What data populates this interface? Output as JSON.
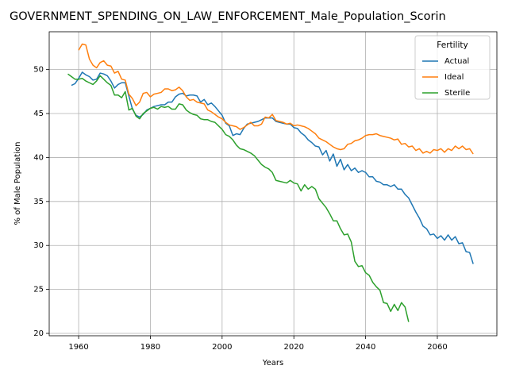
{
  "chart_data": {
    "type": "line",
    "title": "GOVERNMENT_SPENDING_ON_LAW_ENFORCEMENT_Male_Population_Scorin",
    "xlabel": "Years",
    "ylabel": "% of Male Population",
    "x": [
      1957,
      1958,
      1959,
      1960,
      1961,
      1962,
      1963,
      1964,
      1965,
      1966,
      1967,
      1968,
      1969,
      1970,
      1971,
      1972,
      1973,
      1974,
      1975,
      1976,
      1977,
      1978,
      1979,
      1980,
      1981,
      1982,
      1983,
      1984,
      1985,
      1986,
      1987,
      1988,
      1989,
      1990,
      1991,
      1992,
      1993,
      1994,
      1995,
      1996,
      1997,
      1998,
      1999,
      2000,
      2001,
      2002,
      2003,
      2004,
      2005,
      2006,
      2007,
      2008,
      2009,
      2010,
      2011,
      2012,
      2013,
      2014,
      2015,
      2016,
      2017,
      2018,
      2019,
      2020,
      2021,
      2022,
      2023,
      2024,
      2025,
      2026,
      2027,
      2028,
      2029,
      2030,
      2031,
      2032,
      2033,
      2034,
      2035,
      2036,
      2037,
      2038,
      2039,
      2040,
      2041,
      2042,
      2043,
      2044,
      2045,
      2046,
      2047,
      2048,
      2049,
      2050,
      2051,
      2052,
      2053,
      2054,
      2055,
      2056,
      2057,
      2058,
      2059,
      2060,
      2061,
      2062,
      2063,
      2064,
      2065,
      2066,
      2067,
      2068,
      2069,
      2070
    ],
    "series": [
      {
        "name": "Actual",
        "color": "#1f77b4",
        "values": [
          null,
          48.2,
          48.4,
          49.0,
          49.7,
          49.4,
          49.2,
          48.8,
          48.9,
          49.6,
          49.5,
          49.3,
          48.7,
          47.9,
          48.3,
          48.5,
          48.5,
          47.0,
          45.5,
          44.8,
          44.6,
          44.9,
          45.4,
          45.6,
          45.8,
          45.9,
          46.0,
          46.0,
          46.3,
          46.3,
          46.9,
          47.2,
          47.3,
          47.0,
          47.1,
          47.1,
          47.0,
          46.3,
          46.6,
          46.0,
          46.2,
          45.8,
          45.3,
          44.8,
          43.9,
          43.6,
          42.5,
          42.7,
          42.6,
          43.3,
          43.8,
          43.9,
          44.0,
          44.1,
          44.3,
          44.5,
          44.5,
          44.5,
          44.1,
          44.0,
          43.9,
          43.8,
          43.8,
          43.4,
          43.3,
          42.8,
          42.5,
          42.0,
          41.7,
          41.3,
          41.2,
          40.3,
          40.8,
          39.6,
          40.4,
          39.0,
          39.8,
          38.6,
          39.2,
          38.5,
          38.8,
          38.3,
          38.5,
          38.3,
          37.8,
          37.8,
          37.3,
          37.2,
          36.9,
          36.9,
          36.7,
          36.9,
          36.4,
          36.4,
          35.8,
          35.4,
          34.6,
          33.8,
          33.1,
          32.2,
          31.9,
          31.2,
          31.3,
          30.8,
          31.1,
          30.6,
          31.2,
          30.6,
          31.0,
          30.2,
          30.3,
          29.3,
          29.2,
          27.9
        ]
      },
      {
        "name": "Ideal",
        "color": "#ff7f0e",
        "values": [
          null,
          null,
          null,
          52.2,
          52.9,
          52.8,
          51.2,
          50.5,
          50.2,
          50.8,
          51.0,
          50.5,
          50.4,
          49.6,
          49.8,
          48.9,
          48.8,
          47.2,
          46.7,
          45.9,
          46.3,
          47.3,
          47.4,
          46.9,
          47.2,
          47.3,
          47.4,
          47.8,
          47.8,
          47.6,
          47.7,
          48.0,
          47.6,
          46.9,
          46.5,
          46.6,
          46.3,
          46.2,
          46.1,
          45.4,
          45.2,
          44.9,
          44.6,
          44.4,
          44.0,
          43.7,
          43.6,
          43.5,
          43.2,
          43.4,
          43.7,
          44.0,
          43.6,
          43.6,
          43.8,
          44.6,
          44.5,
          44.9,
          44.2,
          44.1,
          44.0,
          43.8,
          43.9,
          43.6,
          43.7,
          43.6,
          43.5,
          43.3,
          43.0,
          42.7,
          42.2,
          42.0,
          41.8,
          41.5,
          41.2,
          41.0,
          40.9,
          41.0,
          41.5,
          41.6,
          41.9,
          42.0,
          42.2,
          42.5,
          42.6,
          42.6,
          42.7,
          42.5,
          42.4,
          42.3,
          42.2,
          42.0,
          42.1,
          41.5,
          41.6,
          41.2,
          41.3,
          40.8,
          41.0,
          40.5,
          40.7,
          40.5,
          40.9,
          40.8,
          41.0,
          40.6,
          41.0,
          40.8,
          41.3,
          41.0,
          41.3,
          40.9,
          41.0,
          40.4
        ]
      },
      {
        "name": "Sterile",
        "color": "#2ca02c",
        "values": [
          49.5,
          49.2,
          48.9,
          48.9,
          49.0,
          48.7,
          48.5,
          48.3,
          48.7,
          49.3,
          48.9,
          48.5,
          48.2,
          47.1,
          47.1,
          46.8,
          47.5,
          45.4,
          45.6,
          44.7,
          44.4,
          45.0,
          45.3,
          45.6,
          45.7,
          45.5,
          45.8,
          45.7,
          45.8,
          45.5,
          45.5,
          46.1,
          46.0,
          45.4,
          45.1,
          44.9,
          44.8,
          44.4,
          44.3,
          44.3,
          44.1,
          44.0,
          43.6,
          43.2,
          42.6,
          42.4,
          42.0,
          41.4,
          41.0,
          40.9,
          40.7,
          40.5,
          40.2,
          39.7,
          39.2,
          38.9,
          38.7,
          38.3,
          37.4,
          37.3,
          37.2,
          37.1,
          37.4,
          37.1,
          37.0,
          36.2,
          36.9,
          36.4,
          36.7,
          36.4,
          35.3,
          34.8,
          34.3,
          33.6,
          32.8,
          32.8,
          31.9,
          31.2,
          31.3,
          30.4,
          28.2,
          27.6,
          27.7,
          26.9,
          26.6,
          25.8,
          25.3,
          24.9,
          23.5,
          23.4,
          22.5,
          23.3,
          22.6,
          23.5,
          23.0,
          21.3,
          null,
          null,
          null,
          null,
          null,
          null,
          null,
          null,
          null,
          null,
          null,
          null,
          null,
          null,
          null,
          null,
          null,
          null
        ]
      }
    ],
    "xlim": [
      1951.8,
      2076.6
    ],
    "xticks": [
      1960,
      1980,
      2000,
      2020,
      2040,
      2060
    ],
    "ylim": [
      19.73,
      54.3
    ],
    "yticks": [
      20,
      25,
      30,
      35,
      40,
      45,
      50
    ],
    "grid": true,
    "legend_title": "Fertility",
    "legend": "upper right"
  }
}
